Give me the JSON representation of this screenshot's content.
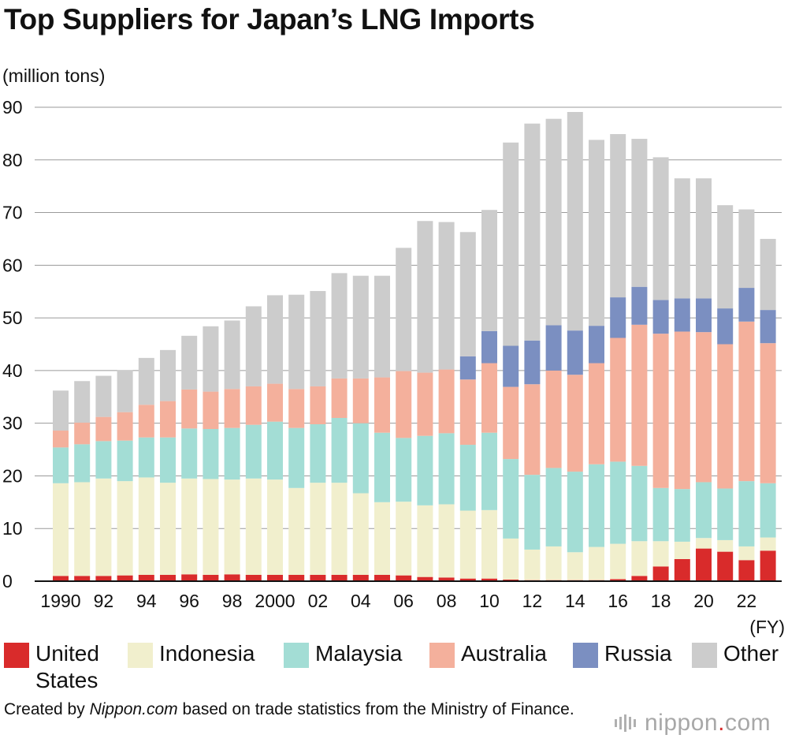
{
  "title": "Top Suppliers for Japan’s LNG Imports",
  "chart_data": {
    "type": "bar",
    "stacked": true,
    "title": "Top Suppliers for Japan’s LNG Imports",
    "ylabel": "(million tons)",
    "xlabel": "(FY)",
    "ylim": [
      0,
      90
    ],
    "yticks": [
      0,
      10,
      20,
      30,
      40,
      50,
      60,
      70,
      80,
      90
    ],
    "categories": [
      "1990",
      "1991",
      "1992",
      "1993",
      "1994",
      "1995",
      "1996",
      "1997",
      "1998",
      "1999",
      "2000",
      "2001",
      "2002",
      "2003",
      "2004",
      "2005",
      "2006",
      "2007",
      "2008",
      "2009",
      "2010",
      "2011",
      "2012",
      "2013",
      "2014",
      "2015",
      "2016",
      "2017",
      "2018",
      "2019",
      "2020",
      "2021",
      "2022",
      "2023"
    ],
    "tick_labels": [
      "1990",
      "",
      "92",
      "",
      "94",
      "",
      "96",
      "",
      "98",
      "",
      "2000",
      "",
      "02",
      "",
      "04",
      "",
      "06",
      "",
      "08",
      "",
      "10",
      "",
      "12",
      "",
      "14",
      "",
      "16",
      "",
      "18",
      "",
      "20",
      "",
      "22",
      ""
    ],
    "series": [
      {
        "name": "United States",
        "color": "#d92b2b",
        "values": [
          1.0,
          1.0,
          1.0,
          1.1,
          1.2,
          1.2,
          1.3,
          1.2,
          1.3,
          1.2,
          1.2,
          1.2,
          1.2,
          1.2,
          1.2,
          1.2,
          1.1,
          0.8,
          0.7,
          0.5,
          0.5,
          0.3,
          0.2,
          0.2,
          0.2,
          0.2,
          0.4,
          1.0,
          2.8,
          4.2,
          6.2,
          5.6,
          4.0,
          5.8
        ]
      },
      {
        "name": "Indonesia",
        "color": "#f1efcd",
        "values": [
          17.6,
          17.8,
          18.5,
          17.9,
          18.5,
          17.5,
          18.2,
          18.2,
          18.0,
          18.3,
          18.1,
          16.5,
          17.5,
          17.5,
          15.5,
          13.8,
          14.0,
          13.6,
          13.9,
          12.9,
          13.0,
          7.8,
          5.8,
          6.4,
          5.3,
          6.3,
          6.7,
          6.6,
          4.8,
          3.3,
          2.0,
          2.2,
          2.6,
          2.5
        ]
      },
      {
        "name": "Malaysia",
        "color": "#a3ddd5",
        "values": [
          6.8,
          7.2,
          7.1,
          7.7,
          7.6,
          8.6,
          9.5,
          9.5,
          9.8,
          10.2,
          11.0,
          11.4,
          11.1,
          12.3,
          13.3,
          13.2,
          12.1,
          13.2,
          13.5,
          12.5,
          14.7,
          15.1,
          14.2,
          14.9,
          15.3,
          15.7,
          15.6,
          14.3,
          10.1,
          10.0,
          10.6,
          9.8,
          12.4,
          10.3
        ]
      },
      {
        "name": "Australia",
        "color": "#f4b09c",
        "values": [
          3.2,
          4.1,
          4.6,
          5.4,
          6.2,
          6.9,
          7.4,
          7.1,
          7.4,
          7.3,
          7.2,
          7.4,
          7.2,
          7.5,
          8.5,
          10.5,
          12.7,
          12.0,
          12.1,
          12.4,
          13.2,
          13.7,
          17.2,
          18.5,
          18.4,
          19.2,
          23.5,
          26.8,
          29.3,
          29.9,
          28.5,
          27.4,
          30.3,
          26.6
        ]
      },
      {
        "name": "Russia",
        "color": "#7b8fc1",
        "values": [
          0,
          0,
          0,
          0,
          0,
          0,
          0,
          0,
          0,
          0,
          0,
          0,
          0,
          0,
          0,
          0,
          0,
          0,
          0,
          4.4,
          6.1,
          7.8,
          8.3,
          8.6,
          8.4,
          7.1,
          7.7,
          7.2,
          6.4,
          6.3,
          6.4,
          6.8,
          6.4,
          6.3
        ]
      },
      {
        "name": "Other",
        "color": "#cccccc",
        "values": [
          7.6,
          7.9,
          7.8,
          8.0,
          8.9,
          9.7,
          10.2,
          12.4,
          13.0,
          15.2,
          16.8,
          17.9,
          18.1,
          20.0,
          19.5,
          19.3,
          23.4,
          28.8,
          28.0,
          23.6,
          23.0,
          38.6,
          41.2,
          39.2,
          41.5,
          35.3,
          31.0,
          28.1,
          27.1,
          22.8,
          22.8,
          19.6,
          14.9,
          13.5
        ]
      }
    ]
  },
  "legend": {
    "items": [
      {
        "label": "United States",
        "color": "#d92b2b"
      },
      {
        "label": "Indonesia",
        "color": "#f1efcd"
      },
      {
        "label": "Malaysia",
        "color": "#a3ddd5"
      },
      {
        "label": "Australia",
        "color": "#f4b09c"
      },
      {
        "label": "Russia",
        "color": "#7b8fc1"
      },
      {
        "label": "Other",
        "color": "#cccccc"
      }
    ]
  },
  "footer": {
    "prefix": "Created by ",
    "source_name": "Nippon.com",
    "suffix": " based on trade statistics from the Ministry of Finance."
  },
  "brand": {
    "name": "nippon",
    "dot": ".",
    "tld": "com"
  }
}
